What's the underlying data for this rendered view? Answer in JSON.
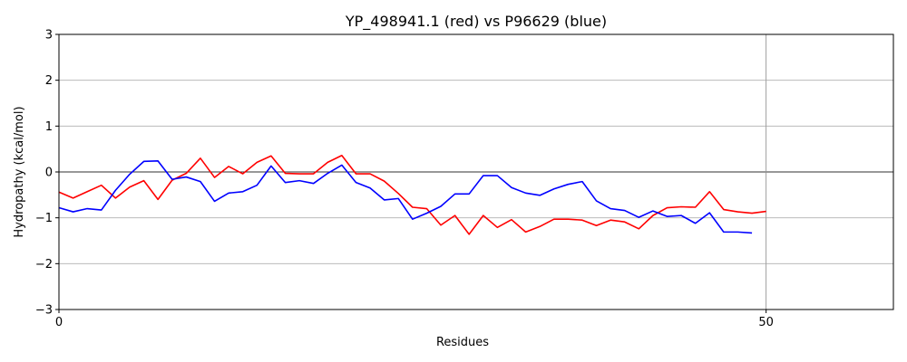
{
  "chart_data": {
    "type": "line",
    "title": "YP_498941.1 (red) vs P96629 (blue)",
    "xlabel": "Residues",
    "ylabel": "Hydropathy (kcal/mol)",
    "xlim": [
      0,
      59
    ],
    "ylim": [
      -3,
      3
    ],
    "xticks": [
      0,
      50
    ],
    "yticks": [
      -3,
      -2,
      -1,
      0,
      1,
      2,
      3
    ],
    "xtick_labels": [
      "0",
      "50"
    ],
    "ytick_labels": [
      "−3",
      "−2",
      "−1",
      "0",
      "1",
      "2",
      "3"
    ],
    "grid": true,
    "reference_lines": {
      "y": 0,
      "x": 50
    },
    "series": [
      {
        "color": "#ff0000",
        "x": [
          0,
          1,
          2,
          3,
          4,
          5,
          6,
          7,
          8,
          9,
          10,
          11,
          12,
          13,
          14,
          15,
          16,
          17,
          18,
          19,
          20,
          21,
          22,
          23,
          24,
          25,
          26,
          27,
          28,
          29,
          30,
          31,
          32,
          33,
          34,
          35,
          36,
          37,
          38,
          39,
          40,
          41,
          42,
          43,
          44,
          45,
          46,
          47,
          48,
          49,
          50
        ],
        "values": [
          -0.44,
          -0.57,
          -0.43,
          -0.29,
          -0.57,
          -0.33,
          -0.19,
          -0.6,
          -0.18,
          -0.03,
          0.3,
          -0.12,
          0.12,
          -0.04,
          0.21,
          0.35,
          -0.03,
          -0.04,
          -0.04,
          0.21,
          0.36,
          -0.04,
          -0.04,
          -0.2,
          -0.47,
          -0.77,
          -0.8,
          -1.16,
          -0.95,
          -1.36,
          -0.95,
          -1.21,
          -1.04,
          -1.31,
          -1.19,
          -1.03,
          -1.03,
          -1.05,
          -1.17,
          -1.05,
          -1.09,
          -1.24,
          -0.95,
          -0.78,
          -0.76,
          -0.77,
          -0.43,
          -0.82,
          -0.87,
          -0.9,
          -0.86
        ]
      },
      {
        "color": "#0000ff",
        "x": [
          0,
          1,
          2,
          3,
          4,
          5,
          6,
          7,
          8,
          9,
          10,
          11,
          12,
          13,
          14,
          15,
          16,
          17,
          18,
          19,
          20,
          21,
          22,
          23,
          24,
          25,
          26,
          27,
          28,
          29,
          30,
          31,
          32,
          33,
          34,
          35,
          36,
          37,
          38,
          39,
          40,
          41,
          42,
          43,
          44,
          45,
          46,
          47,
          48,
          49
        ],
        "values": [
          -0.78,
          -0.87,
          -0.8,
          -0.83,
          -0.4,
          -0.05,
          0.23,
          0.24,
          -0.16,
          -0.11,
          -0.21,
          -0.64,
          -0.46,
          -0.43,
          -0.29,
          0.13,
          -0.23,
          -0.19,
          -0.25,
          -0.03,
          0.15,
          -0.23,
          -0.35,
          -0.61,
          -0.58,
          -1.03,
          -0.9,
          -0.75,
          -0.48,
          -0.48,
          -0.08,
          -0.08,
          -0.34,
          -0.46,
          -0.51,
          -0.37,
          -0.27,
          -0.21,
          -0.63,
          -0.8,
          -0.84,
          -0.99,
          -0.85,
          -0.97,
          -0.95,
          -1.12,
          -0.89,
          -1.31,
          -1.31,
          -1.33
        ]
      }
    ]
  }
}
